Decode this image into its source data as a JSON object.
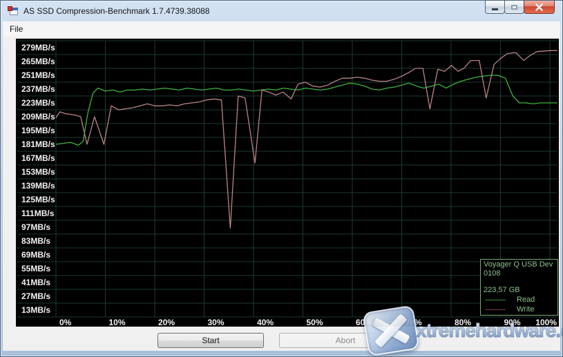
{
  "window": {
    "title": "AS SSD Compression-Benchmark 1.7.4739.38088",
    "controls": {
      "minimize": "minimize",
      "maximize": "maximize",
      "close": "close"
    }
  },
  "menu": {
    "items": [
      {
        "label": "File"
      }
    ]
  },
  "buttons": {
    "start": "Start",
    "abort": "Abort"
  },
  "watermark": {
    "text": "xtremehardware.com",
    "icon": "x-logo"
  },
  "chart_data": {
    "type": "line",
    "title": "",
    "xlabel": "",
    "ylabel": "",
    "xlim": [
      0,
      100
    ],
    "ylim": [
      6,
      286
    ],
    "grid": true,
    "legend_position": "bottom-right",
    "background_color": "#000000",
    "grid_color": "#1d3a35",
    "axis_label_color": "#f2f2f2",
    "x_ticks": [
      "0%",
      "10%",
      "20%",
      "30%",
      "40%",
      "50%",
      "60%",
      "70%",
      "80%",
      "90%",
      "100%"
    ],
    "y_ticks": [
      "279MB/s",
      "265MB/s",
      "251MB/s",
      "237MB/s",
      "223MB/s",
      "209MB/s",
      "195MB/s",
      "181MB/s",
      "167MB/s",
      "153MB/s",
      "139MB/s",
      "125MB/s",
      "111MB/s",
      "97MB/s",
      "83MB/s",
      "69MB/s",
      "55MB/s",
      "41MB/s",
      "27MB/s",
      "13MB/s"
    ],
    "y_tick_values": [
      279,
      265,
      251,
      237,
      223,
      209,
      195,
      181,
      167,
      153,
      139,
      125,
      111,
      97,
      83,
      69,
      55,
      41,
      27,
      13
    ],
    "series": [
      {
        "name": "Read",
        "color": "#3eb43e",
        "points": [
          [
            0,
            181
          ],
          [
            1.5,
            182
          ],
          [
            3,
            183
          ],
          [
            4.5,
            180
          ],
          [
            5.5,
            184
          ],
          [
            6.5,
            214
          ],
          [
            7.5,
            233
          ],
          [
            8.5,
            238
          ],
          [
            10,
            235
          ],
          [
            11.5,
            236
          ],
          [
            13,
            234
          ],
          [
            14.5,
            236
          ],
          [
            16,
            236
          ],
          [
            17.5,
            237
          ],
          [
            19,
            236
          ],
          [
            20.5,
            237
          ],
          [
            22,
            238
          ],
          [
            23.5,
            237
          ],
          [
            25,
            236
          ],
          [
            26.5,
            238
          ],
          [
            28,
            237
          ],
          [
            29.5,
            236
          ],
          [
            31,
            237
          ],
          [
            32.5,
            238
          ],
          [
            34,
            236
          ],
          [
            35.5,
            236
          ],
          [
            37,
            237
          ],
          [
            38.5,
            236
          ],
          [
            40,
            235
          ],
          [
            41.5,
            236
          ],
          [
            43,
            237
          ],
          [
            44.5,
            236
          ],
          [
            46,
            238
          ],
          [
            47.5,
            237
          ],
          [
            49,
            236
          ],
          [
            50.5,
            238
          ],
          [
            52,
            237
          ],
          [
            53.5,
            236
          ],
          [
            55,
            237
          ],
          [
            56.5,
            239
          ],
          [
            58,
            241
          ],
          [
            59.5,
            243
          ],
          [
            61,
            242
          ],
          [
            62.5,
            240
          ],
          [
            64,
            237
          ],
          [
            65.5,
            236
          ],
          [
            67,
            238
          ],
          [
            68.5,
            239
          ],
          [
            70,
            241
          ],
          [
            71.5,
            243
          ],
          [
            73,
            240
          ],
          [
            74.5,
            238
          ],
          [
            76,
            240
          ],
          [
            77.5,
            242
          ],
          [
            79,
            238
          ],
          [
            80.5,
            242
          ],
          [
            82,
            245
          ],
          [
            83.5,
            247
          ],
          [
            85,
            249
          ],
          [
            86.5,
            250
          ],
          [
            88,
            251
          ],
          [
            89.5,
            251
          ],
          [
            91,
            248
          ],
          [
            92.5,
            230
          ],
          [
            93.8,
            223
          ],
          [
            95.2,
            223
          ],
          [
            96.6,
            222
          ],
          [
            98,
            223
          ],
          [
            100,
            223
          ]
        ]
      },
      {
        "name": "Write",
        "color": "#bb8486",
        "points": [
          [
            0,
            208
          ],
          [
            0.8,
            214
          ],
          [
            2,
            212
          ],
          [
            3.5,
            211
          ],
          [
            5,
            209
          ],
          [
            6.3,
            181
          ],
          [
            7.8,
            209
          ],
          [
            9.7,
            181
          ],
          [
            11.2,
            220
          ],
          [
            12.7,
            216
          ],
          [
            14,
            217
          ],
          [
            15.5,
            218
          ],
          [
            17,
            220
          ],
          [
            18.5,
            222
          ],
          [
            20,
            220
          ],
          [
            21.5,
            220
          ],
          [
            23,
            221
          ],
          [
            24.5,
            220
          ],
          [
            26,
            222
          ],
          [
            27.5,
            223
          ],
          [
            29,
            224
          ],
          [
            30.5,
            226
          ],
          [
            32,
            227
          ],
          [
            33.5,
            226
          ],
          [
            35.3,
            96
          ],
          [
            36.9,
            230
          ],
          [
            38.3,
            228
          ],
          [
            40.3,
            162
          ],
          [
            41.7,
            236
          ],
          [
            43.1,
            234
          ],
          [
            44.5,
            231
          ],
          [
            46,
            234
          ],
          [
            47.6,
            227
          ],
          [
            49,
            242
          ],
          [
            50.5,
            244
          ],
          [
            52,
            240
          ],
          [
            53.5,
            239
          ],
          [
            55,
            241
          ],
          [
            56.5,
            245
          ],
          [
            58,
            248
          ],
          [
            59.5,
            248
          ],
          [
            61,
            249
          ],
          [
            62.5,
            248
          ],
          [
            64,
            246
          ],
          [
            65.5,
            245
          ],
          [
            67,
            245
          ],
          [
            68.5,
            247
          ],
          [
            70,
            250
          ],
          [
            71.5,
            254
          ],
          [
            72.8,
            258
          ],
          [
            74.3,
            258
          ],
          [
            75.7,
            217
          ],
          [
            77.3,
            257
          ],
          [
            78.7,
            255
          ],
          [
            80.1,
            261
          ],
          [
            81.4,
            255
          ],
          [
            82.6,
            258
          ],
          [
            84,
            266
          ],
          [
            85.7,
            266
          ],
          [
            87.1,
            228
          ],
          [
            88.7,
            262
          ],
          [
            90,
            268
          ],
          [
            91.4,
            273
          ],
          [
            93.1,
            274
          ],
          [
            94.7,
            266
          ],
          [
            96,
            271
          ],
          [
            97.4,
            275
          ],
          [
            100,
            276
          ]
        ]
      }
    ],
    "legend": {
      "device_line1": "Voyager Q USB Dev",
      "device_line2": "0108",
      "capacity": "223,57 GB",
      "entries": [
        {
          "label": "Read",
          "color": "#2e8c2e"
        },
        {
          "label": "Write",
          "color": "#7c3b48"
        }
      ]
    }
  }
}
